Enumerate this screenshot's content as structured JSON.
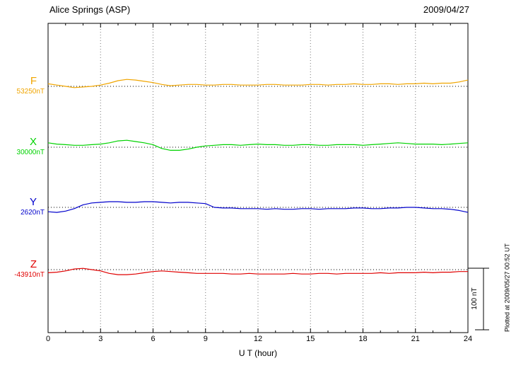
{
  "header": {
    "title": "Alice Springs (ASP)",
    "date": "2009/04/27"
  },
  "axis": {
    "xlabel": "U T (hour)",
    "ticks": [
      "0",
      "3",
      "6",
      "9",
      "12",
      "15",
      "18",
      "21",
      "24"
    ]
  },
  "scale_bar": {
    "label": "100 nT"
  },
  "footer": {
    "note": "Plotted at 2009/05/27 00:52 UT"
  },
  "chart_data": {
    "type": "line",
    "title": "Alice Springs (ASP)",
    "date": "2009/04/27",
    "xlabel": "U T (hour)",
    "x_range_hours": [
      0,
      24
    ],
    "x_ticks": [
      0,
      3,
      6,
      9,
      12,
      15,
      18,
      21,
      24
    ],
    "sample_step_hours": 0.5,
    "scale_bar_nT": 100,
    "grid": "dotted vertical every 3 hours; dotted horizontal baseline per trace",
    "series": [
      {
        "name": "F",
        "baseline": "53250nT",
        "baseline_value_nT": 53250,
        "color": "#f0a500",
        "offsets_nT": [
          4,
          2,
          0,
          -2,
          -1,
          0,
          2,
          5,
          9,
          11,
          10,
          8,
          6,
          3,
          1,
          2,
          3,
          3,
          2,
          2,
          3,
          3,
          2,
          2,
          2,
          3,
          3,
          2,
          2,
          2,
          3,
          3,
          2,
          3,
          3,
          4,
          3,
          3,
          4,
          4,
          3,
          4,
          4,
          5,
          4,
          5,
          5,
          7,
          10
        ]
      },
      {
        "name": "X",
        "baseline": "30000nT",
        "baseline_value_nT": 30000,
        "color": "#00d200",
        "offsets_nT": [
          7,
          5,
          4,
          3,
          3,
          4,
          5,
          7,
          10,
          11,
          9,
          7,
          4,
          -2,
          -5,
          -5,
          -3,
          0,
          2,
          3,
          4,
          4,
          3,
          4,
          5,
          4,
          4,
          3,
          3,
          4,
          4,
          3,
          3,
          4,
          4,
          4,
          3,
          4,
          5,
          6,
          7,
          6,
          5,
          5,
          5,
          4,
          5,
          6,
          7
        ]
      },
      {
        "name": "Y",
        "baseline": "2620nT",
        "baseline_value_nT": 2620,
        "color": "#0000cc",
        "offsets_nT": [
          -7,
          -8,
          -6,
          -2,
          4,
          7,
          8,
          9,
          9,
          8,
          8,
          9,
          9,
          8,
          7,
          8,
          8,
          7,
          6,
          0,
          -1,
          -1,
          -2,
          -2,
          -2,
          -3,
          -2,
          -3,
          -3,
          -2,
          -2,
          -3,
          -2,
          -2,
          -2,
          -1,
          -1,
          -2,
          -2,
          -1,
          -1,
          0,
          0,
          -1,
          -2,
          -2,
          -3,
          -5,
          -8
        ]
      },
      {
        "name": "Z",
        "baseline": "-43910nT",
        "baseline_value_nT": -43910,
        "color": "#e00000",
        "offsets_nT": [
          -5,
          -4,
          -2,
          1,
          2,
          0,
          -2,
          -6,
          -8,
          -8,
          -7,
          -5,
          -3,
          -2,
          -3,
          -4,
          -5,
          -6,
          -6,
          -6,
          -6,
          -7,
          -7,
          -6,
          -7,
          -7,
          -7,
          -7,
          -6,
          -7,
          -7,
          -6,
          -6,
          -7,
          -6,
          -6,
          -6,
          -6,
          -5,
          -6,
          -5,
          -5,
          -5,
          -4,
          -5,
          -4,
          -4,
          -3,
          -3
        ]
      }
    ]
  }
}
